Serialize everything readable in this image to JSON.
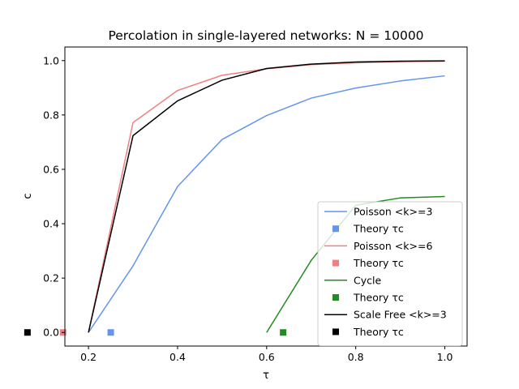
{
  "chart_data": {
    "type": "line",
    "title": "Percolation in single-layered networks: N = 10000",
    "xlabel": "τ",
    "ylabel": "c",
    "xlim": [
      0.147,
      1.05
    ],
    "ylim": [
      -0.05,
      1.05
    ],
    "xticks": [
      0.2,
      0.4,
      0.6,
      0.8,
      1.0
    ],
    "xtick_labels": [
      "0.2",
      "0.4",
      "0.6",
      "0.8",
      "1.0"
    ],
    "yticks": [
      0.0,
      0.2,
      0.4,
      0.6,
      0.8,
      1.0
    ],
    "ytick_labels": [
      "0.0",
      "0.2",
      "0.4",
      "0.6",
      "0.8",
      "1.0"
    ],
    "grid": false,
    "legend_position": "lower-right",
    "series": [
      {
        "name": "Poisson <k>=3",
        "color": "#6495ED",
        "x": [
          0.2,
          0.3,
          0.4,
          0.5,
          0.6,
          0.7,
          0.8,
          0.9,
          1.0
        ],
        "y": [
          0.0,
          0.245,
          0.537,
          0.71,
          0.798,
          0.862,
          0.899,
          0.925,
          0.944
        ],
        "theory_name": "Theory τc",
        "theory_x": 0.25,
        "theory_y": 0.0
      },
      {
        "name": "Poisson <k>=6",
        "color": "#F08080",
        "x": [
          0.2,
          0.3,
          0.4,
          0.5,
          0.6,
          0.7,
          0.8,
          0.9,
          1.0
        ],
        "y": [
          0.0,
          0.772,
          0.89,
          0.946,
          0.97,
          0.985,
          0.992,
          0.996,
          0.998
        ],
        "theory_name": "Theory τc",
        "theory_x": 0.1429,
        "theory_y": 0.0
      },
      {
        "name": "Cycle",
        "color": "#228B22",
        "x": [
          0.6,
          0.7,
          0.8,
          0.9,
          1.0
        ],
        "y": [
          0.0,
          0.265,
          0.468,
          0.495,
          0.5
        ],
        "theory_name": "Theory τc",
        "theory_x": 0.637,
        "theory_y": 0.0
      },
      {
        "name": "Scale Free <k>=3",
        "color": "#000000",
        "x": [
          0.2,
          0.3,
          0.4,
          0.5,
          0.6,
          0.7,
          0.8,
          0.9,
          1.0
        ],
        "y": [
          0.0,
          0.724,
          0.852,
          0.928,
          0.971,
          0.987,
          0.995,
          0.998,
          0.999
        ],
        "theory_name": "Theory τc",
        "theory_x": 0.063,
        "theory_y": 0.0
      }
    ]
  }
}
